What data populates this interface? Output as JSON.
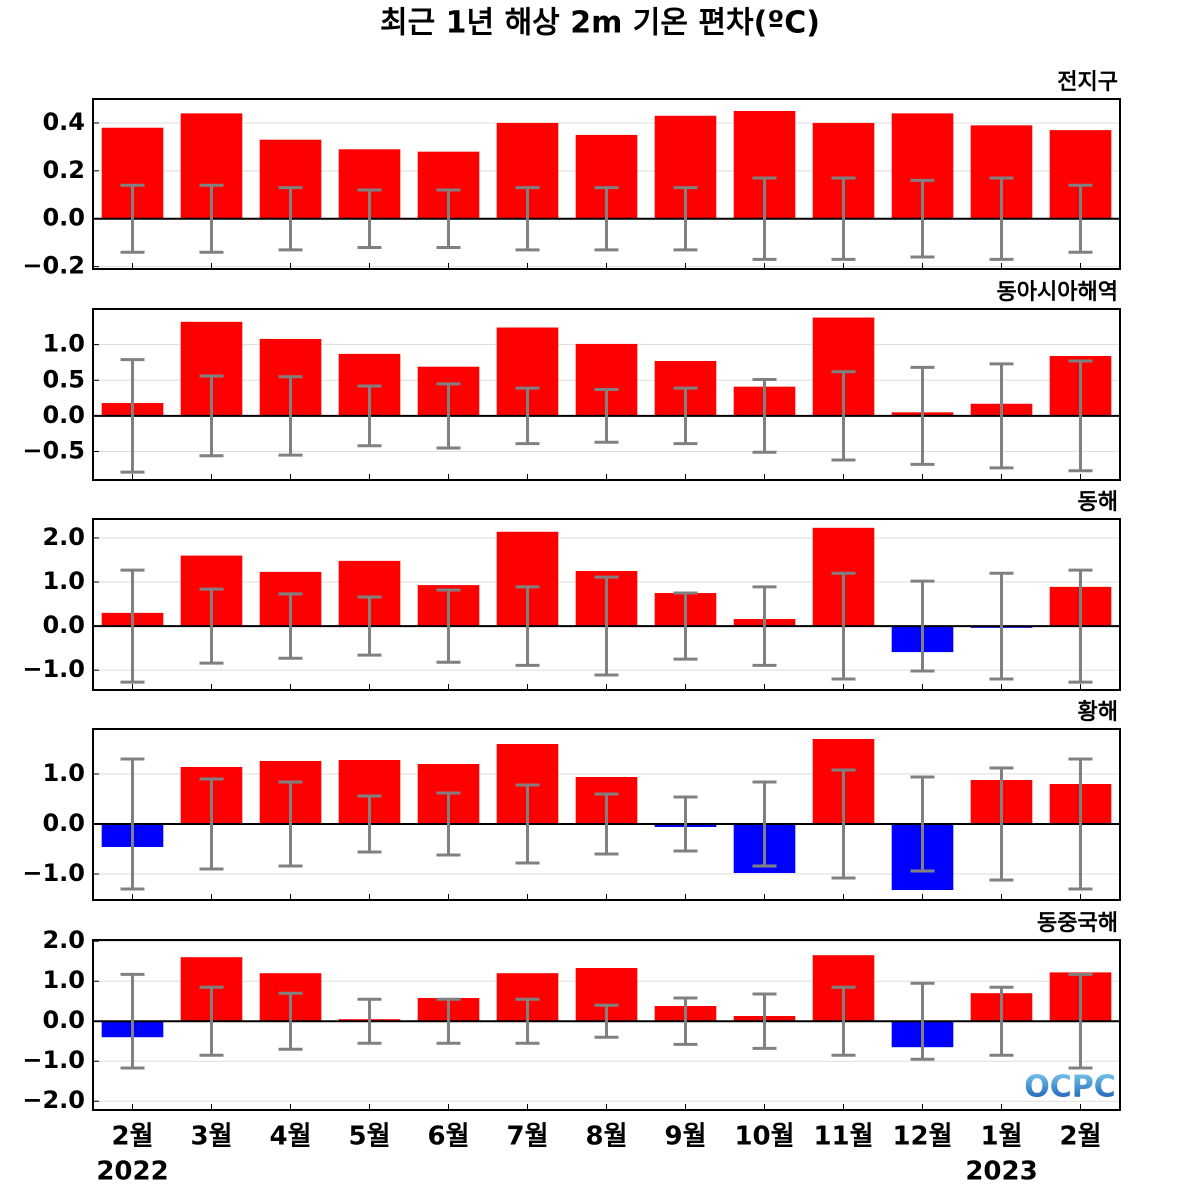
{
  "title": "최근 1년 해상 2m 기온 편차(ºC)",
  "logo": "OCPC",
  "chart_data": [
    {
      "type": "bar",
      "title": "전지구",
      "values": [
        0.38,
        0.44,
        0.33,
        0.29,
        0.28,
        0.4,
        0.35,
        0.43,
        0.45,
        0.4,
        0.44,
        0.39,
        0.37
      ],
      "errors": [
        0.14,
        0.14,
        0.13,
        0.12,
        0.12,
        0.13,
        0.13,
        0.13,
        0.17,
        0.17,
        0.16,
        0.17,
        0.14
      ],
      "ylim": [
        -0.21,
        0.5
      ],
      "yticks": [
        {
          "value": -0.2,
          "label": "−0.2"
        },
        {
          "value": 0,
          "label": "0.0"
        },
        {
          "value": 0.2,
          "label": "0.2"
        },
        {
          "value": 0.4,
          "label": "0.4"
        }
      ],
      "color": "#ff0000",
      "negative_color": "#0000ff",
      "error_color": "#808080",
      "grid": true
    },
    {
      "type": "bar",
      "title": "동아시아해역",
      "values": [
        0.18,
        1.32,
        1.08,
        0.87,
        0.69,
        1.24,
        1.01,
        0.77,
        0.41,
        1.38,
        0.05,
        0.17,
        0.84
      ],
      "errors": [
        0.79,
        0.56,
        0.55,
        0.42,
        0.45,
        0.39,
        0.37,
        0.39,
        0.51,
        0.62,
        0.68,
        0.73,
        0.77
      ],
      "ylim": [
        -0.9,
        1.5
      ],
      "yticks": [
        {
          "value": -0.5,
          "label": "−0.5"
        },
        {
          "value": 0,
          "label": "0.0"
        },
        {
          "value": 0.5,
          "label": "0.5"
        },
        {
          "value": 1,
          "label": "1.0"
        }
      ],
      "color": "#ff0000",
      "negative_color": "#0000ff",
      "error_color": "#808080",
      "grid": true
    },
    {
      "type": "bar",
      "title": "동해",
      "values": [
        0.3,
        1.6,
        1.23,
        1.48,
        0.93,
        2.14,
        1.25,
        0.75,
        0.16,
        2.23,
        -0.59,
        -0.04,
        0.89
      ],
      "errors": [
        1.27,
        0.84,
        0.73,
        0.66,
        0.82,
        0.89,
        1.11,
        0.75,
        0.89,
        1.2,
        1.02,
        1.2,
        1.27
      ],
      "ylim": [
        -1.45,
        2.43
      ],
      "yticks": [
        {
          "value": -1,
          "label": "−1.0"
        },
        {
          "value": 0,
          "label": "0.0"
        },
        {
          "value": 1,
          "label": "1.0"
        },
        {
          "value": 2,
          "label": "2.0"
        }
      ],
      "color": "#ff0000",
      "negative_color": "#0000ff",
      "error_color": "#808080",
      "grid": true
    },
    {
      "type": "bar",
      "title": "황해",
      "values": [
        -0.46,
        1.14,
        1.26,
        1.28,
        1.2,
        1.6,
        0.94,
        -0.06,
        -0.98,
        1.7,
        -1.32,
        0.88,
        0.8
      ],
      "errors": [
        1.3,
        0.9,
        0.84,
        0.56,
        0.62,
        0.78,
        0.6,
        0.54,
        0.84,
        1.08,
        0.94,
        1.12,
        1.3
      ],
      "ylim": [
        -1.52,
        1.9
      ],
      "yticks": [
        {
          "value": -1,
          "label": "−1.0"
        },
        {
          "value": 0,
          "label": "0.0"
        },
        {
          "value": 1,
          "label": "1.0"
        }
      ],
      "color": "#ff0000",
      "negative_color": "#0000ff",
      "error_color": "#808080",
      "grid": true
    },
    {
      "type": "bar",
      "title": "동중국해",
      "categories": [
        "2월",
        "3월",
        "4월",
        "5월",
        "6월",
        "7월",
        "8월",
        "9월",
        "10월",
        "11월",
        "12월",
        "1월",
        "2월"
      ],
      "year_labels": [
        "2022",
        null,
        null,
        null,
        null,
        null,
        null,
        null,
        null,
        null,
        null,
        "2023",
        null
      ],
      "values": [
        -0.4,
        1.6,
        1.2,
        0.05,
        0.58,
        1.2,
        1.33,
        0.38,
        0.13,
        1.65,
        -0.65,
        0.7,
        1.22
      ],
      "errors": [
        1.17,
        0.85,
        0.7,
        0.55,
        0.55,
        0.55,
        0.4,
        0.58,
        0.68,
        0.85,
        0.95,
        0.85,
        1.17
      ],
      "ylim": [
        -2.22,
        2.03
      ],
      "yticks": [
        {
          "value": -2,
          "label": "−2.0"
        },
        {
          "value": -1,
          "label": "−1.0"
        },
        {
          "value": 0,
          "label": "0.0"
        },
        {
          "value": 1,
          "label": "1.0"
        },
        {
          "value": 2,
          "label": "2.0"
        }
      ],
      "color": "#ff0000",
      "negative_color": "#0000ff",
      "error_color": "#808080",
      "grid": true
    }
  ]
}
